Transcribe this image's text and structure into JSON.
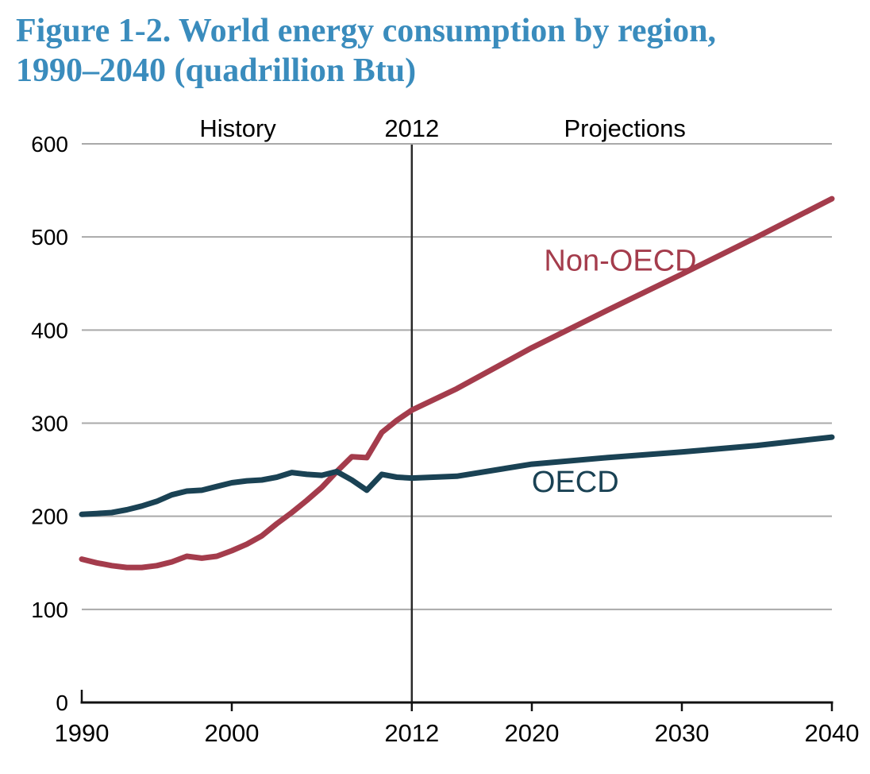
{
  "figure": {
    "title_line1": "Figure 1-2. World energy consumption by region,",
    "title_line2": "1990–2040 (quadrillion Btu)",
    "title_color": "#3a8cbd"
  },
  "chart_data": {
    "type": "line",
    "title": "Figure 1-2. World energy consumption by region, 1990–2040 (quadrillion Btu)",
    "xlabel": "",
    "ylabel": "quadrillion Btu",
    "xlim": [
      1990,
      2040
    ],
    "ylim": [
      0,
      600
    ],
    "x_ticks": [
      1990,
      2000,
      2012,
      2020,
      2030,
      2040
    ],
    "y_ticks": [
      0,
      100,
      200,
      300,
      400,
      500,
      600
    ],
    "grid": "horizontal-only",
    "legend_position": "inline-labels",
    "colors": {
      "grid": "#a9a9a9",
      "axis": "#111111",
      "divider": "#2a2a2a",
      "text": "#000000"
    },
    "annotations": {
      "history_label": "History",
      "divider_label": "2012",
      "projections_label": "Projections",
      "divider_x": 2012,
      "history_label_year": 2000.4,
      "projections_label_year": 2026.2
    },
    "years": [
      1990,
      1991,
      1992,
      1993,
      1994,
      1995,
      1996,
      1997,
      1998,
      1999,
      2000,
      2001,
      2002,
      2003,
      2004,
      2005,
      2006,
      2007,
      2008,
      2009,
      2010,
      2011,
      2012,
      2015,
      2020,
      2025,
      2030,
      2035,
      2040
    ],
    "series": [
      {
        "name": "Non-OECD",
        "color": "#a43c4c",
        "label_year": 2025.9,
        "label_value": 464,
        "values": [
          154,
          150,
          147,
          145,
          145,
          147,
          151,
          157,
          155,
          157,
          163,
          170,
          179,
          192,
          204,
          217,
          231,
          248,
          264,
          263,
          290,
          303,
          314,
          337,
          381,
          421,
          460,
          500,
          541
        ]
      },
      {
        "name": "OECD",
        "color": "#1a4254",
        "label_year": 2022.9,
        "label_value": 226,
        "values": [
          202,
          203,
          204,
          207,
          211,
          216,
          223,
          227,
          228,
          232,
          236,
          238,
          239,
          242,
          247,
          245,
          244,
          248,
          239,
          228,
          245,
          242,
          241,
          243,
          256,
          263,
          269,
          276,
          285
        ]
      }
    ]
  }
}
